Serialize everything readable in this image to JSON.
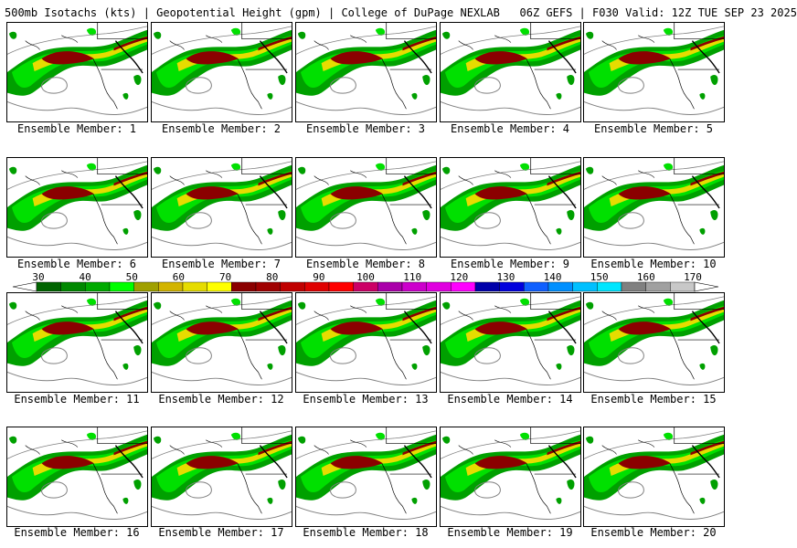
{
  "header": {
    "title": "500mb Isotachs (kts) | Geopotential Height (gpm) | College of DuPage NEXLAB   06Z GEFS | F030 Valid: 12Z TUE SEP 23 2025"
  },
  "member_label_prefix": "Ensemble Member:",
  "members": [
    "1",
    "2",
    "3",
    "4",
    "5",
    "6",
    "7",
    "8",
    "9",
    "10",
    "11",
    "12",
    "13",
    "14",
    "15",
    "16",
    "17",
    "18",
    "19",
    "20"
  ],
  "colorbar": {
    "labels": [
      "30",
      "40",
      "50",
      "60",
      "70",
      "80",
      "90",
      "100",
      "110",
      "120",
      "130",
      "140",
      "150",
      "160",
      "170"
    ],
    "colors": [
      "#006400",
      "#008800",
      "#00aa00",
      "#00ff00",
      "#a0a000",
      "#d2b400",
      "#e6dc00",
      "#ffff00",
      "#8b0000",
      "#a00000",
      "#c00000",
      "#e00000",
      "#ff0000",
      "#cc0066",
      "#aa00aa",
      "#cc00cc",
      "#e000e0",
      "#ff00ff",
      "#0000aa",
      "#0000dd",
      "#1060ff",
      "#0090ff",
      "#00c0ff",
      "#00e6ff",
      "#808080",
      "#a0a0a0",
      "#c8c8c8"
    ]
  },
  "map_colors": {
    "jet_outer": "#00a000",
    "jet_mid": "#00e000",
    "jet_yellow": "#e6dc00",
    "jet_core": "#8b0000",
    "coast": "#000000",
    "height_contour": "#808080"
  }
}
